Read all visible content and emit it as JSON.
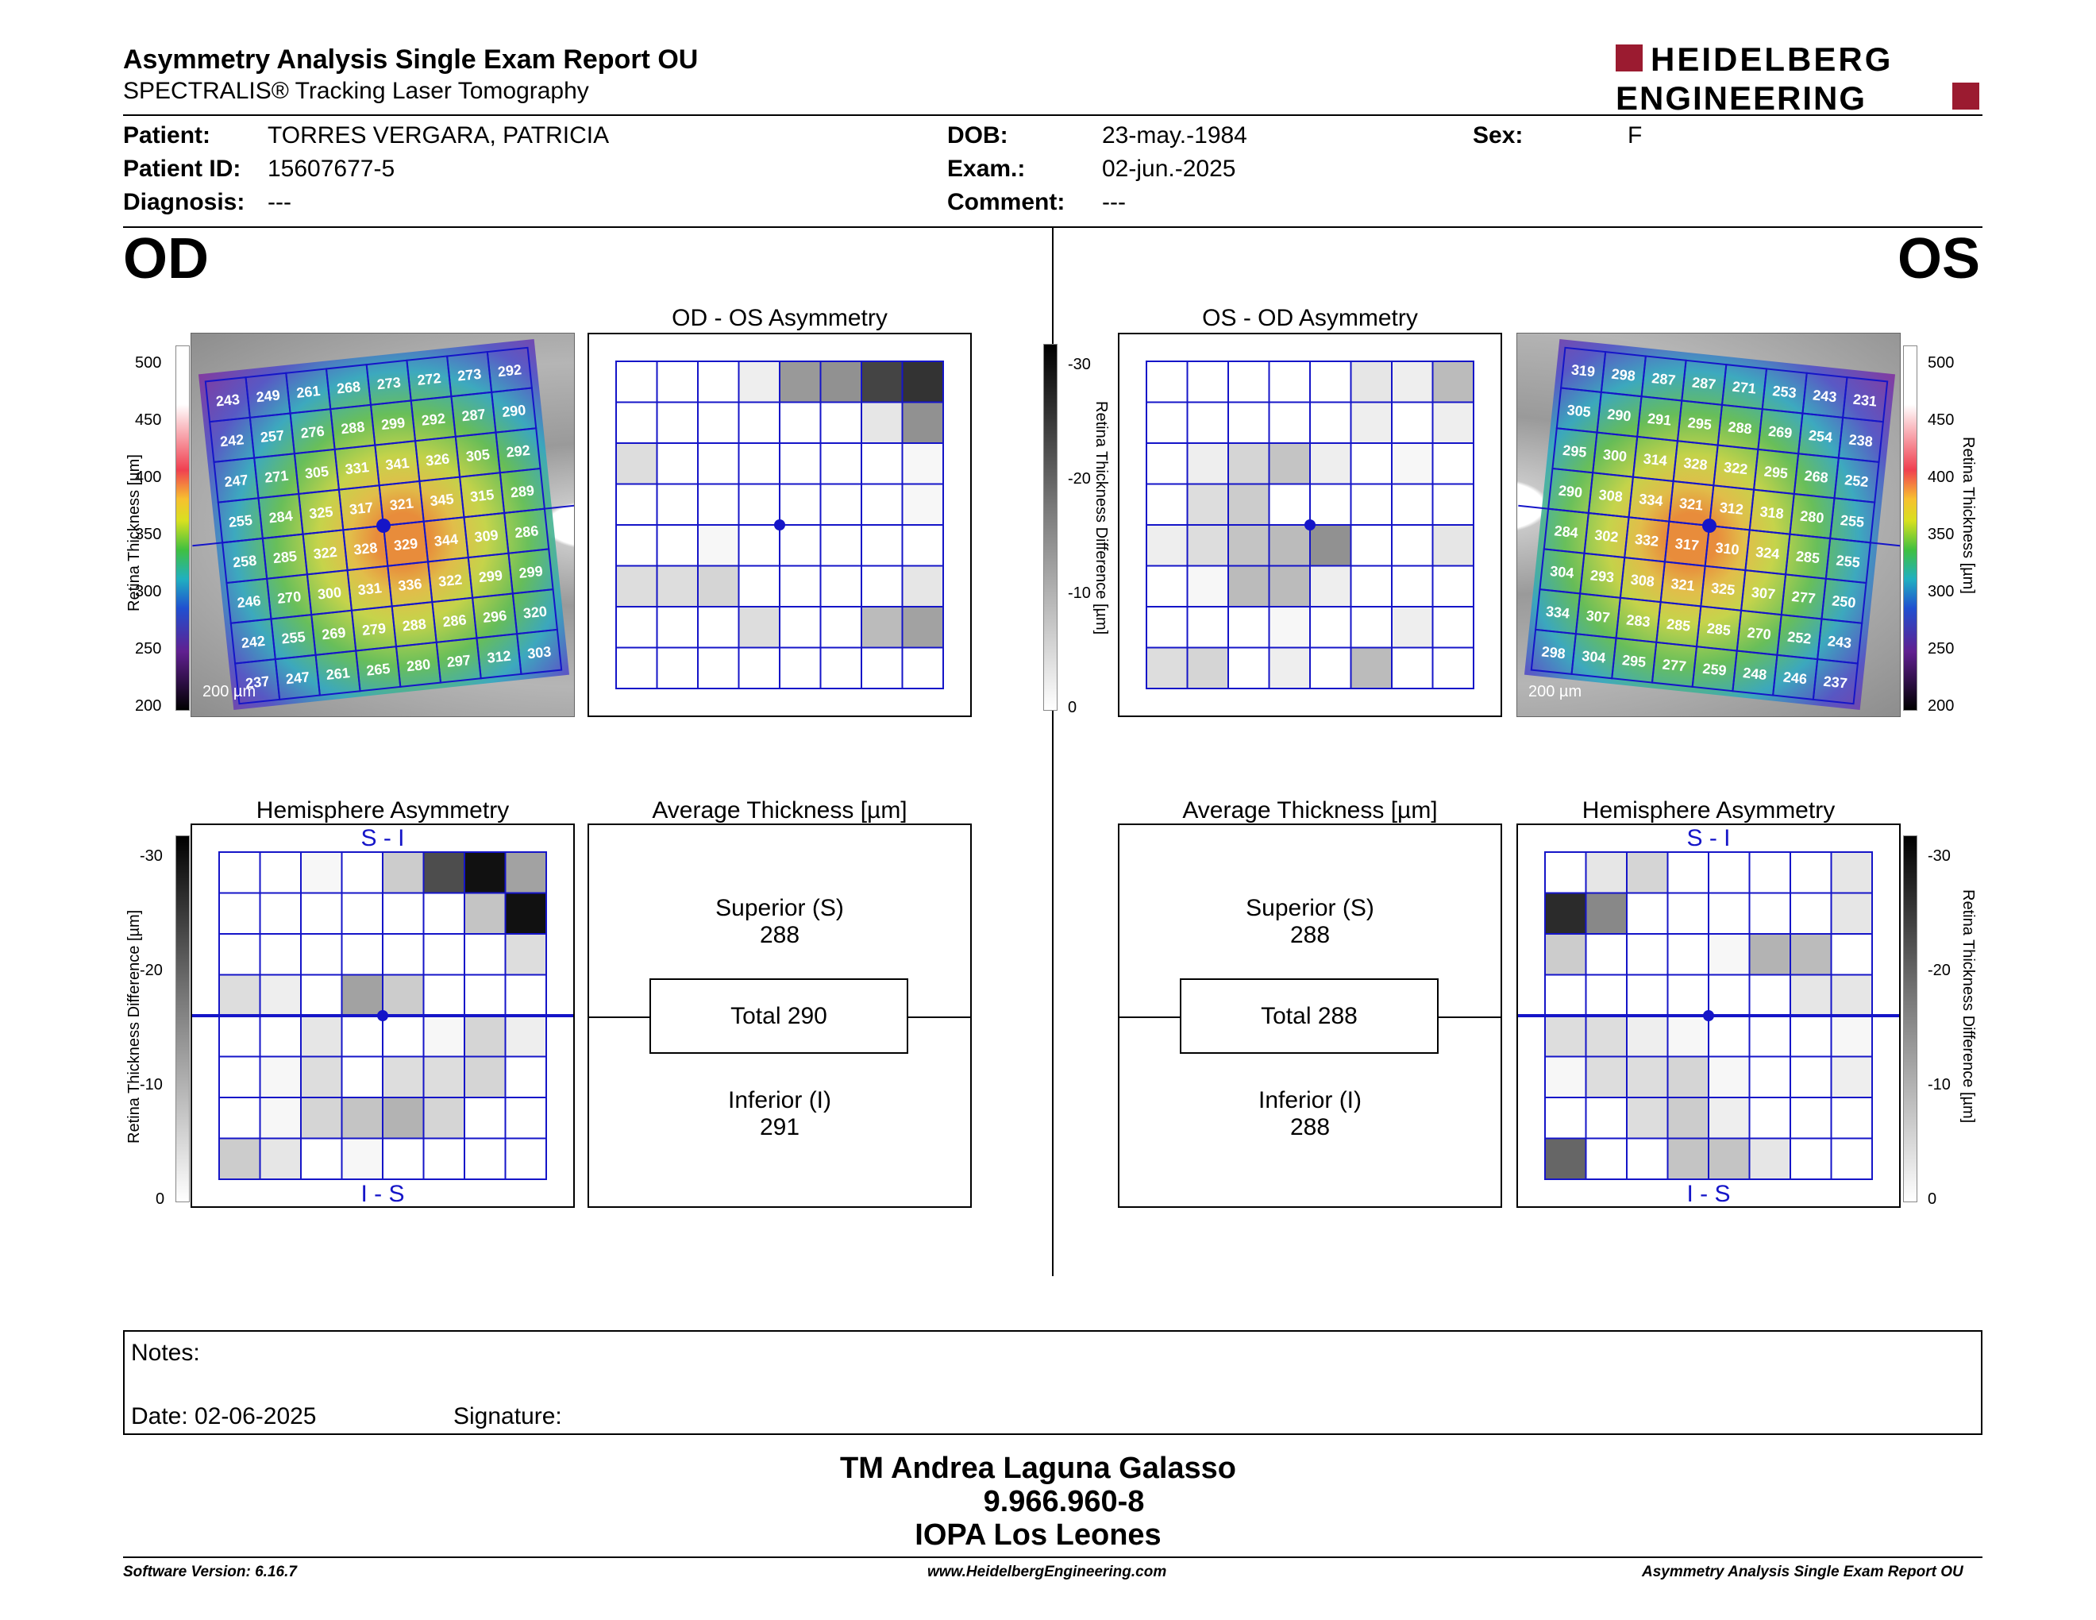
{
  "header": {
    "title": "Asymmetry Analysis Single Exam Report OU",
    "subtitle": "SPECTRALIS® Tracking Laser Tomography",
    "logo_line1": "HEIDELBERG",
    "logo_line2": "ENGINEERING"
  },
  "patient": {
    "patient_label": "Patient:",
    "patient_value": "TORRES VERGARA, PATRICIA",
    "id_label": "Patient ID:",
    "id_value": "15607677-5",
    "diagnosis_label": "Diagnosis:",
    "diagnosis_value": "---",
    "dob_label": "DOB:",
    "dob_value": "23-may.-1984",
    "exam_label": "Exam.:",
    "exam_value": "02-jun.-2025",
    "comment_label": "Comment:",
    "comment_value": "---",
    "sex_label": "Sex:",
    "sex_value": "F"
  },
  "od": {
    "eye_label": "OD",
    "asym_title": "OD - OS Asymmetry",
    "hemi_title": "Hemisphere Asymmetry",
    "avg_title": "Average Thickness [µm]",
    "superior_label": "Superior (S)",
    "superior_value": "288",
    "total_label": "Total 290",
    "inferior_label": "Inferior (I)",
    "inferior_value": "291",
    "top_marker": "S - I",
    "bottom_marker": "I - S",
    "scale_bar": "200 µm",
    "thickness_grid": [
      [
        243,
        249,
        261,
        268,
        273,
        272,
        273,
        292
      ],
      [
        242,
        257,
        276,
        288,
        299,
        292,
        287,
        290
      ],
      [
        247,
        271,
        305,
        331,
        341,
        326,
        305,
        292
      ],
      [
        255,
        284,
        325,
        317,
        321,
        345,
        315,
        289
      ],
      [
        258,
        285,
        322,
        328,
        329,
        344,
        309,
        286
      ],
      [
        246,
        270,
        300,
        331,
        336,
        322,
        299,
        299
      ],
      [
        242,
        255,
        269,
        279,
        288,
        286,
        296,
        320
      ],
      [
        237,
        247,
        261,
        265,
        280,
        297,
        312,
        303
      ]
    ],
    "asym_grid": [
      [
        0,
        0,
        0,
        2,
        12,
        13,
        22,
        24
      ],
      [
        0,
        0,
        0,
        0,
        0,
        0,
        3,
        13
      ],
      [
        4,
        0,
        0,
        0,
        0,
        0,
        0,
        1
      ],
      [
        0,
        0,
        0,
        0,
        0,
        0,
        0,
        1
      ],
      [
        0,
        0,
        1,
        0,
        0,
        0,
        0,
        0
      ],
      [
        4,
        4,
        5,
        0,
        0,
        0,
        0,
        3
      ],
      [
        0,
        0,
        0,
        4,
        0,
        0,
        8,
        11
      ],
      [
        0,
        0,
        0,
        0,
        0,
        0,
        0,
        0
      ]
    ],
    "hemi_grid": [
      [
        0,
        0,
        1,
        0,
        6,
        21,
        28,
        11
      ],
      [
        0,
        0,
        0,
        0,
        0,
        0,
        7,
        28
      ],
      [
        0,
        0,
        0,
        0,
        0,
        0,
        0,
        4
      ],
      [
        4,
        2,
        0,
        11,
        6,
        0,
        0,
        0
      ],
      [
        0,
        0,
        3,
        0,
        0,
        1,
        5,
        2
      ],
      [
        0,
        1,
        4,
        0,
        4,
        4,
        5,
        0
      ],
      [
        0,
        1,
        5,
        7,
        9,
        5,
        0,
        0
      ],
      [
        6,
        3,
        0,
        1,
        0,
        0,
        0,
        0
      ]
    ]
  },
  "os": {
    "eye_label": "OS",
    "asym_title": "OS - OD Asymmetry",
    "hemi_title": "Hemisphere Asymmetry",
    "avg_title": "Average Thickness [µm]",
    "superior_label": "Superior (S)",
    "superior_value": "288",
    "total_label": "Total 288",
    "inferior_label": "Inferior (I)",
    "inferior_value": "288",
    "top_marker": "S - I",
    "bottom_marker": "I - S",
    "scale_bar": "200 µm",
    "thickness_grid": [
      [
        319,
        298,
        287,
        287,
        271,
        253,
        243,
        231
      ],
      [
        305,
        290,
        291,
        295,
        288,
        269,
        254,
        238
      ],
      [
        295,
        300,
        314,
        328,
        322,
        295,
        268,
        252
      ],
      [
        290,
        308,
        334,
        321,
        312,
        318,
        280,
        255
      ],
      [
        284,
        302,
        332,
        317,
        310,
        324,
        285,
        255
      ],
      [
        304,
        293,
        308,
        321,
        325,
        307,
        277,
        250
      ],
      [
        334,
        307,
        283,
        285,
        285,
        270,
        252,
        243
      ],
      [
        298,
        304,
        295,
        277,
        259,
        248,
        246,
        237
      ]
    ],
    "asym_grid": [
      [
        0,
        0,
        0,
        0,
        0,
        3,
        2,
        8
      ],
      [
        0,
        0,
        0,
        0,
        0,
        2,
        0,
        2
      ],
      [
        0,
        2,
        5,
        7,
        2,
        0,
        1,
        0
      ],
      [
        0,
        4,
        6,
        0,
        0,
        0,
        0,
        0
      ],
      [
        2,
        4,
        7,
        8,
        13,
        0,
        0,
        3
      ],
      [
        0,
        1,
        8,
        8,
        2,
        0,
        0,
        0
      ],
      [
        0,
        0,
        0,
        1,
        0,
        0,
        2,
        0
      ],
      [
        4,
        5,
        0,
        2,
        0,
        8,
        0,
        0
      ]
    ],
    "hemi_grid": [
      [
        0,
        3,
        5,
        0,
        0,
        0,
        0,
        3
      ],
      [
        25,
        14,
        0,
        0,
        0,
        0,
        0,
        3
      ],
      [
        6,
        0,
        0,
        0,
        1,
        9,
        8,
        0
      ],
      [
        0,
        0,
        0,
        0,
        0,
        0,
        3,
        3
      ],
      [
        4,
        4,
        2,
        1,
        0,
        0,
        0,
        1
      ],
      [
        1,
        4,
        4,
        5,
        1,
        0,
        0,
        2
      ],
      [
        0,
        0,
        4,
        6,
        2,
        0,
        0,
        0
      ],
      [
        18,
        0,
        0,
        7,
        7,
        3,
        0,
        0
      ]
    ]
  },
  "scales": {
    "thickness_ticks": [
      "500",
      "450",
      "400",
      "350",
      "300",
      "250",
      "200"
    ],
    "thickness_axis_label": "Retina Thickness [µm]",
    "diff_ticks": [
      "-30",
      "-20",
      "-10",
      "0"
    ],
    "diff_axis_label": "Retina Thickness Difference [µm]"
  },
  "notes": {
    "notes_label": "Notes:",
    "date_label": "Date: 02-06-2025",
    "signature_label": "Signature:"
  },
  "signature_block": {
    "name": "TM Andrea Laguna Galasso",
    "rut": "9.966.960-8",
    "institution": "IOPA Los Leones"
  },
  "footer": {
    "software": "Software Version: 6.16.7",
    "website": "www.HeidelbergEngineering.com",
    "report_name": "Asymmetry Analysis Single Exam Report OU"
  }
}
